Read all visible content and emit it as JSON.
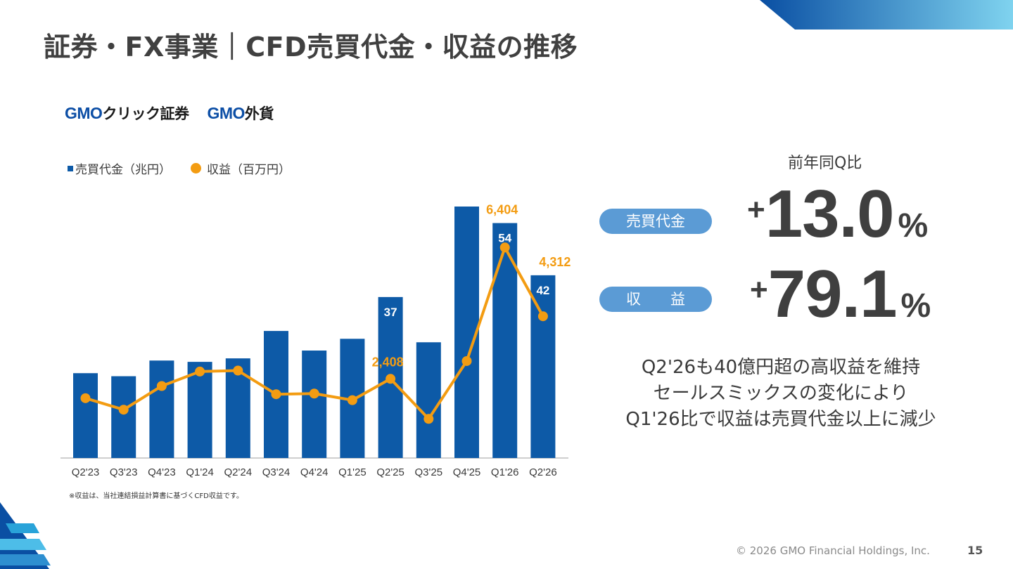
{
  "page": {
    "title": "証券・FX事業｜CFD売買代金・収益の推移",
    "logo1_prefix": "GMO",
    "logo1_rest": "クリック証券",
    "logo2_prefix": "GMO",
    "logo2_rest": "外貨",
    "legend_bar": "売買代金（兆円）",
    "legend_line": "収益（百万円）",
    "note": "※収益は、当社連結損益計算書に基づくCFD収益です。",
    "yoy_label": "前年同Q比",
    "metric1_label": "売買代金",
    "metric1_sign": "+",
    "metric1_value": "13.0",
    "metric1_unit": "%",
    "metric2_label": "収　　益",
    "metric2_sign": "+",
    "metric2_value": "79.1",
    "metric2_unit": "%",
    "summary_line1": "Q2'26も40億円超の高収益を維持",
    "summary_line2": "セールスミックスの変化により",
    "summary_line3": "Q1'26比で収益は売買代金以上に減少",
    "footer": "© 2026 GMO Financial Holdings, Inc.",
    "page_number": "15"
  },
  "colors": {
    "bar": "#0d5aa7",
    "line": "#f39c12",
    "pill": "#5b9bd5",
    "title": "#404040"
  },
  "chart_data": {
    "type": "bar",
    "categories": [
      "Q2'23",
      "Q3'23",
      "Q4'23",
      "Q1'24",
      "Q2'24",
      "Q3'24",
      "Q4'24",
      "Q1'25",
      "Q2'25",
      "Q3'25",
      "Q4'25",
      "Q1'26",
      "Q2'26"
    ],
    "series": [
      {
        "name": "売買代金（兆円）",
        "type": "bar",
        "values": [
          19.5,
          18.8,
          22.4,
          22.1,
          22.9,
          29.2,
          24.7,
          27.4,
          37,
          26.6,
          57.8,
          54,
          42
        ],
        "labels": [
          "",
          "",
          "",
          "",
          "",
          "",
          "",
          "",
          "37",
          "",
          "",
          "54",
          "42"
        ]
      },
      {
        "name": "収益（百万円）",
        "type": "line",
        "values": [
          1820,
          1470,
          2190,
          2630,
          2660,
          1940,
          1960,
          1760,
          2408,
          1190,
          2950,
          6404,
          4312
        ],
        "labels": [
          "",
          "",
          "",
          "",
          "",
          "",
          "",
          "",
          "2,408",
          "",
          "",
          "6,404",
          "4,312"
        ]
      }
    ]
  }
}
